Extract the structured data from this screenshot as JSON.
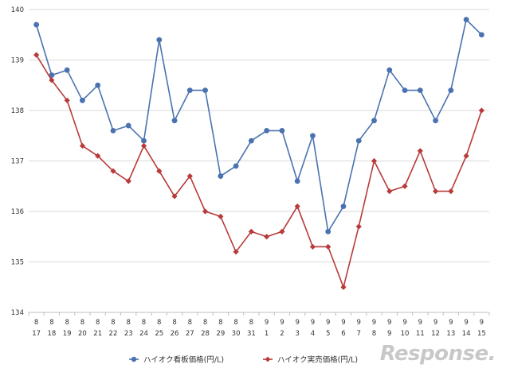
{
  "chart_data": {
    "type": "line",
    "title": "",
    "xlabel": "",
    "ylabel": "",
    "ylim": [
      134,
      140
    ],
    "y_ticks": [
      "134",
      "135",
      "136",
      "137",
      "138",
      "139",
      "140"
    ],
    "grid": true,
    "legend_position": "bottom",
    "categories": [
      {
        "month": "8",
        "day": "17"
      },
      {
        "month": "8",
        "day": "18"
      },
      {
        "month": "8",
        "day": "19"
      },
      {
        "month": "8",
        "day": "20"
      },
      {
        "month": "8",
        "day": "21"
      },
      {
        "month": "8",
        "day": "22"
      },
      {
        "month": "8",
        "day": "23"
      },
      {
        "month": "8",
        "day": "24"
      },
      {
        "month": "8",
        "day": "25"
      },
      {
        "month": "8",
        "day": "26"
      },
      {
        "month": "8",
        "day": "27"
      },
      {
        "month": "8",
        "day": "28"
      },
      {
        "month": "8",
        "day": "29"
      },
      {
        "month": "8",
        "day": "30"
      },
      {
        "month": "8",
        "day": "31"
      },
      {
        "month": "9",
        "day": "1"
      },
      {
        "month": "9",
        "day": "2"
      },
      {
        "month": "9",
        "day": "3"
      },
      {
        "month": "9",
        "day": "4"
      },
      {
        "month": "9",
        "day": "5"
      },
      {
        "month": "9",
        "day": "6"
      },
      {
        "month": "9",
        "day": "7"
      },
      {
        "month": "9",
        "day": "8"
      },
      {
        "month": "9",
        "day": "9"
      },
      {
        "month": "9",
        "day": "10"
      },
      {
        "month": "9",
        "day": "11"
      },
      {
        "month": "9",
        "day": "12"
      },
      {
        "month": "9",
        "day": "13"
      },
      {
        "month": "9",
        "day": "14"
      },
      {
        "month": "9",
        "day": "15"
      }
    ],
    "series": [
      {
        "name": "ハイオク看板価格(円/L)",
        "color": "#4a72b0",
        "marker": "circle",
        "values": [
          139.7,
          138.7,
          138.8,
          138.2,
          138.5,
          137.6,
          137.7,
          137.4,
          139.4,
          137.8,
          138.4,
          138.4,
          136.7,
          136.9,
          137.4,
          137.6,
          137.6,
          136.6,
          137.5,
          135.6,
          136.1,
          137.4,
          137.8,
          138.8,
          138.4,
          138.4,
          137.8,
          138.4,
          139.8,
          139.5
        ]
      },
      {
        "name": "ハイオク実売価格(円/L)",
        "color": "#b83a3a",
        "marker": "diamond",
        "values": [
          139.1,
          138.6,
          138.2,
          137.3,
          137.1,
          136.8,
          136.6,
          137.3,
          136.8,
          136.3,
          136.7,
          136.0,
          135.9,
          135.2,
          135.6,
          135.5,
          135.6,
          136.1,
          135.3,
          135.3,
          134.5,
          135.7,
          137.0,
          136.4,
          136.5,
          137.2,
          136.4,
          136.4,
          137.1,
          138.0
        ]
      }
    ]
  },
  "watermark": {
    "text": "Response."
  }
}
